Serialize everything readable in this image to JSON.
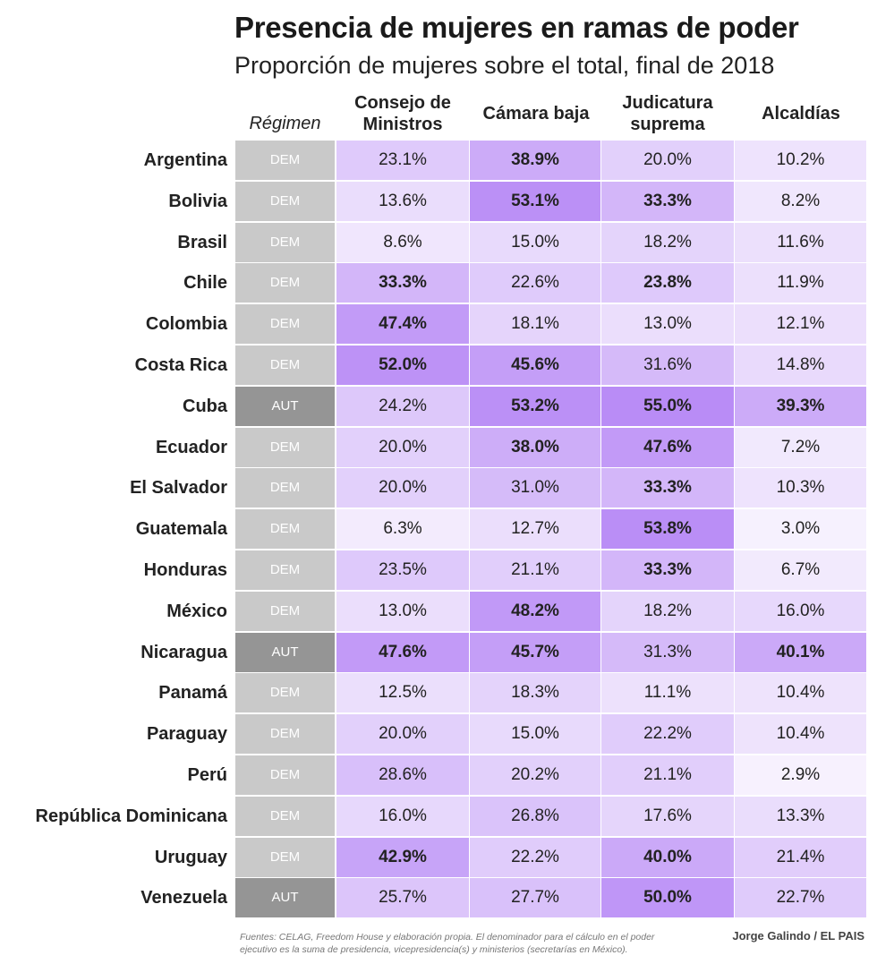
{
  "title": "Presencia de mujeres en ramas de poder",
  "subtitle": "Proporción de mujeres sobre el total, final de 2018",
  "footnote": "Fuentes: CELAG, Freedom House y elaboración propia. El denominador para el cálculo en el poder ejecutivo es la suma de presidencia, vicepresidencia(s) y ministerios (secretarías en México).",
  "credit": "Jorge Galindo / EL PAIS",
  "chart_data": {
    "type": "table",
    "columns": [
      "Régimen",
      "Consejo de Ministros",
      "Cámara baja",
      "Judicatura suprema",
      "Alcaldías"
    ],
    "value_suffix": "%",
    "regime_colors": {
      "DEM": "#c9c9c9",
      "AUT": "#959595"
    },
    "scale_colors": {
      "low": "#faf7fe",
      "high": "#b98cf6"
    },
    "rows": [
      {
        "country": "Argentina",
        "regimen": "DEM",
        "values": [
          23.1,
          38.9,
          20.0,
          10.2
        ],
        "bold": [
          false,
          true,
          false,
          false
        ]
      },
      {
        "country": "Bolivia",
        "regimen": "DEM",
        "values": [
          13.6,
          53.1,
          33.3,
          8.2
        ],
        "bold": [
          false,
          true,
          true,
          false
        ]
      },
      {
        "country": "Brasil",
        "regimen": "DEM",
        "values": [
          8.6,
          15.0,
          18.2,
          11.6
        ],
        "bold": [
          false,
          false,
          false,
          false
        ]
      },
      {
        "country": "Chile",
        "regimen": "DEM",
        "values": [
          33.3,
          22.6,
          23.8,
          11.9
        ],
        "bold": [
          true,
          false,
          true,
          false
        ]
      },
      {
        "country": "Colombia",
        "regimen": "DEM",
        "values": [
          47.4,
          18.1,
          13.0,
          12.1
        ],
        "bold": [
          true,
          false,
          false,
          false
        ]
      },
      {
        "country": "Costa Rica",
        "regimen": "DEM",
        "values": [
          52.0,
          45.6,
          31.6,
          14.8
        ],
        "bold": [
          true,
          true,
          false,
          false
        ]
      },
      {
        "country": "Cuba",
        "regimen": "AUT",
        "values": [
          24.2,
          53.2,
          55.0,
          39.3
        ],
        "bold": [
          false,
          true,
          true,
          true
        ]
      },
      {
        "country": "Ecuador",
        "regimen": "DEM",
        "values": [
          20.0,
          38.0,
          47.6,
          7.2
        ],
        "bold": [
          false,
          true,
          true,
          false
        ]
      },
      {
        "country": "El Salvador",
        "regimen": "DEM",
        "values": [
          20.0,
          31.0,
          33.3,
          10.3
        ],
        "bold": [
          false,
          false,
          true,
          false
        ]
      },
      {
        "country": "Guatemala",
        "regimen": "DEM",
        "values": [
          6.3,
          12.7,
          53.8,
          3.0
        ],
        "bold": [
          false,
          false,
          true,
          false
        ]
      },
      {
        "country": "Honduras",
        "regimen": "DEM",
        "values": [
          23.5,
          21.1,
          33.3,
          6.7
        ],
        "bold": [
          false,
          false,
          true,
          false
        ]
      },
      {
        "country": "México",
        "regimen": "DEM",
        "values": [
          13.0,
          48.2,
          18.2,
          16.0
        ],
        "bold": [
          false,
          true,
          false,
          false
        ]
      },
      {
        "country": "Nicaragua",
        "regimen": "AUT",
        "values": [
          47.6,
          45.7,
          31.3,
          40.1
        ],
        "bold": [
          true,
          true,
          false,
          true
        ]
      },
      {
        "country": "Panamá",
        "regimen": "DEM",
        "values": [
          12.5,
          18.3,
          11.1,
          10.4
        ],
        "bold": [
          false,
          false,
          false,
          false
        ]
      },
      {
        "country": "Paraguay",
        "regimen": "DEM",
        "values": [
          20.0,
          15.0,
          22.2,
          10.4
        ],
        "bold": [
          false,
          false,
          false,
          false
        ]
      },
      {
        "country": "Perú",
        "regimen": "DEM",
        "values": [
          28.6,
          20.2,
          21.1,
          2.9
        ],
        "bold": [
          false,
          false,
          false,
          false
        ]
      },
      {
        "country": "República Dominicana",
        "regimen": "DEM",
        "values": [
          16.0,
          26.8,
          17.6,
          13.3
        ],
        "bold": [
          false,
          false,
          false,
          false
        ]
      },
      {
        "country": "Uruguay",
        "regimen": "DEM",
        "values": [
          42.9,
          22.2,
          40.0,
          21.4
        ],
        "bold": [
          true,
          false,
          true,
          false
        ]
      },
      {
        "country": "Venezuela",
        "regimen": "AUT",
        "values": [
          25.7,
          27.7,
          50.0,
          22.7
        ],
        "bold": [
          false,
          false,
          true,
          false
        ]
      }
    ]
  }
}
